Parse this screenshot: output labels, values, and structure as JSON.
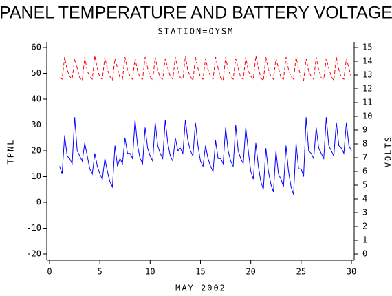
{
  "chart_data": {
    "type": "line",
    "title": "PANEL TEMPERATURE AND BATTERY VOLTAGE",
    "subtitle": "STATION=OYSM",
    "x_label": "MAY 2002",
    "y_label": "TPNL",
    "y2_label": "VOLTS",
    "x": [
      1,
      1.25,
      1.5,
      1.75,
      2,
      2.25,
      2.5,
      2.75,
      3,
      3.25,
      3.5,
      3.75,
      4,
      4.25,
      4.5,
      4.75,
      5,
      5.25,
      5.5,
      5.75,
      6,
      6.25,
      6.5,
      6.75,
      7,
      7.25,
      7.5,
      7.75,
      8,
      8.25,
      8.5,
      8.75,
      9,
      9.25,
      9.5,
      9.75,
      10,
      10.25,
      10.5,
      10.75,
      11,
      11.25,
      11.5,
      11.75,
      12,
      12.25,
      12.5,
      12.75,
      13,
      13.25,
      13.5,
      13.75,
      14,
      14.25,
      14.5,
      14.75,
      15,
      15.25,
      15.5,
      15.75,
      16,
      16.25,
      16.5,
      16.75,
      17,
      17.25,
      17.5,
      17.75,
      18,
      18.25,
      18.5,
      18.75,
      19,
      19.25,
      19.5,
      19.75,
      20,
      20.25,
      20.5,
      20.75,
      21,
      21.25,
      21.5,
      21.75,
      22,
      22.25,
      22.5,
      22.75,
      23,
      23.25,
      23.5,
      23.75,
      24,
      24.25,
      24.5,
      24.75,
      25,
      25.25,
      25.5,
      25.75,
      26,
      26.25,
      26.5,
      26.75,
      27,
      27.25,
      27.5,
      27.75,
      28,
      28.25,
      28.5,
      28.75,
      29,
      29.25,
      29.5,
      29.75,
      30
    ],
    "series": [
      {
        "name": "TPNL",
        "color": "#0000ff",
        "dash": false,
        "axis": "y",
        "values": [
          14,
          11,
          26,
          18,
          17,
          15,
          33,
          20,
          18,
          16,
          23,
          18,
          13,
          11,
          19,
          14,
          11,
          9,
          17,
          12,
          8,
          6,
          22,
          14,
          17,
          15,
          25,
          19,
          19,
          17,
          32,
          22,
          17,
          15,
          29,
          21,
          18,
          16,
          31,
          22,
          19,
          17,
          32,
          23,
          18,
          16,
          25,
          20,
          21,
          19,
          32,
          24,
          20,
          18,
          31,
          22,
          16,
          14,
          22,
          17,
          14,
          12,
          24,
          17,
          17,
          15,
          29,
          20,
          16,
          14,
          30,
          20,
          17,
          15,
          29,
          20,
          12,
          9,
          23,
          14,
          8,
          5,
          21,
          12,
          7,
          4,
          20,
          11,
          9,
          6,
          22,
          12,
          6,
          3,
          23,
          13,
          13,
          10,
          33,
          20,
          19,
          17,
          29,
          21,
          19,
          17,
          33,
          22,
          20,
          18,
          31,
          22,
          21,
          19,
          31,
          22,
          20
        ]
      },
      {
        "name": "VOLTS",
        "color": "#ff0000",
        "dash": true,
        "axis": "y2",
        "values": [
          12.8,
          12.7,
          14.3,
          13.4,
          12.9,
          12.7,
          14.2,
          13.5,
          12.8,
          12.6,
          14.3,
          13.3,
          12.9,
          12.7,
          14.4,
          13.5,
          12.8,
          12.7,
          14.3,
          13.4,
          12.9,
          12.6,
          14.2,
          13.5,
          12.8,
          12.7,
          14.3,
          13.4,
          12.9,
          12.7,
          14.2,
          13.3,
          12.8,
          12.7,
          14.3,
          13.5,
          12.9,
          12.6,
          14.3,
          13.4,
          12.8,
          12.7,
          14.2,
          13.5,
          12.9,
          12.7,
          14.3,
          13.4,
          12.8,
          12.7,
          14.4,
          13.3,
          12.9,
          12.6,
          14.3,
          13.5,
          12.8,
          12.7,
          14.2,
          13.4,
          12.9,
          12.7,
          14.3,
          13.5,
          12.8,
          12.6,
          14.3,
          13.4,
          12.9,
          12.7,
          14.2,
          13.5,
          12.8,
          12.7,
          14.3,
          13.3,
          12.9,
          12.7,
          14.4,
          13.5,
          12.8,
          12.6,
          14.3,
          13.4,
          12.9,
          12.7,
          14.2,
          13.5,
          12.8,
          12.7,
          14.3,
          13.4,
          12.9,
          12.7,
          14.3,
          13.5,
          12.8,
          12.6,
          14.2,
          13.3,
          12.9,
          12.7,
          14.3,
          13.4,
          12.8,
          12.7,
          14.2,
          13.5,
          12.9,
          12.6,
          14.3,
          13.4,
          12.8,
          12.7,
          14.2,
          13.5,
          12.8
        ]
      }
    ],
    "xlim": [
      0,
      30
    ],
    "xticks": [
      0,
      5,
      10,
      15,
      20,
      25,
      30
    ],
    "ylim": [
      -20,
      60
    ],
    "yticks": [
      -20,
      -10,
      0,
      10,
      20,
      30,
      40,
      50,
      60
    ],
    "y2lim": [
      0,
      15
    ],
    "y2ticks": [
      0,
      1,
      2,
      3,
      4,
      5,
      6,
      7,
      8,
      9,
      10,
      11,
      12,
      13,
      14,
      15
    ],
    "grid": false
  }
}
